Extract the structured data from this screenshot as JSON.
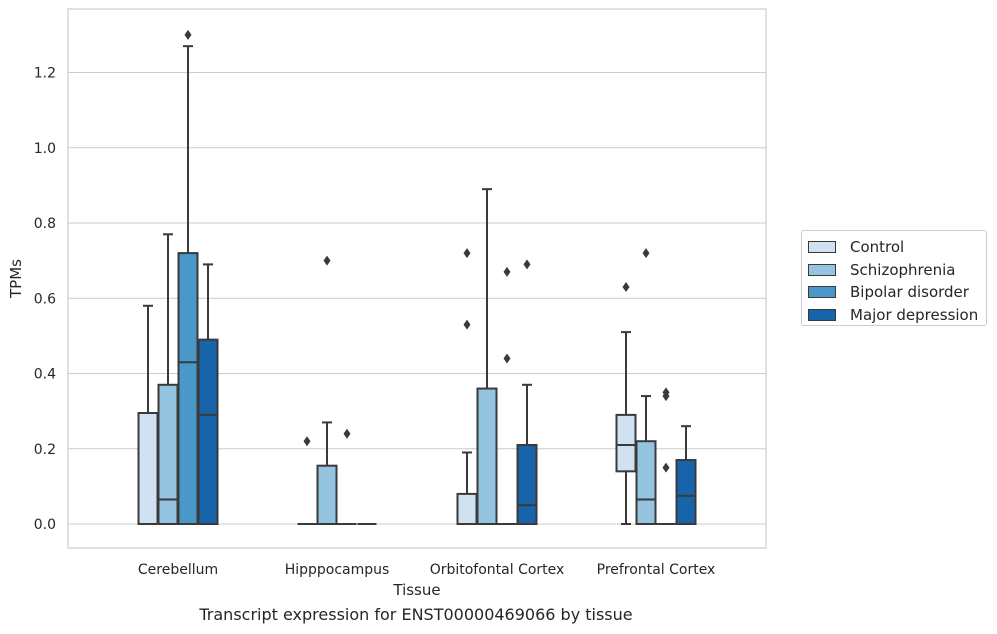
{
  "caption": "Transcript expression for ENST00000469066 by tissue",
  "chart_data": {
    "type": "box",
    "xlabel": "Tissue",
    "ylabel": "TPMs",
    "categories": [
      "Cerebellum",
      "Hipppocampus",
      "Orbitofontal Cortex",
      "Prefrontal Cortex"
    ],
    "yticks": [
      "0.0",
      "0.2",
      "0.4",
      "0.6",
      "0.8",
      "1.0",
      "1.2"
    ],
    "ylim": [
      -0.065,
      1.37
    ],
    "grid": true,
    "legend_position": "right",
    "colors": {
      "Control": "#d0e1f2",
      "Schizophrenia": "#94c4df",
      "Bipolar disorder": "#4a98c9",
      "Major depression": "#1764ab",
      "edge": "#3a3a3a",
      "grid": "#cccccc"
    },
    "series": [
      {
        "name": "Control",
        "boxes": [
          {
            "q1": 0,
            "median": 0,
            "q3": 0.295,
            "whisker_low": 0,
            "whisker_high": 0.58,
            "outliers": []
          },
          {
            "q1": 0,
            "median": 0,
            "q3": 0,
            "whisker_low": 0,
            "whisker_high": 0,
            "outliers": [
              0.22
            ]
          },
          {
            "q1": 0,
            "median": 0,
            "q3": 0.08,
            "whisker_low": 0,
            "whisker_high": 0.19,
            "outliers": [
              0.53,
              0.72
            ]
          },
          {
            "q1": 0.14,
            "median": 0.21,
            "q3": 0.29,
            "whisker_low": 0,
            "whisker_high": 0.51,
            "outliers": [
              0.63
            ]
          }
        ]
      },
      {
        "name": "Schizophrenia",
        "boxes": [
          {
            "q1": 0,
            "median": 0.065,
            "q3": 0.37,
            "whisker_low": 0,
            "whisker_high": 0.77,
            "outliers": []
          },
          {
            "q1": 0,
            "median": 0,
            "q3": 0.155,
            "whisker_low": 0,
            "whisker_high": 0.27,
            "outliers": [
              0.7
            ]
          },
          {
            "q1": 0,
            "median": 0,
            "q3": 0.36,
            "whisker_low": 0,
            "whisker_high": 0.89,
            "outliers": []
          },
          {
            "q1": 0,
            "median": 0.065,
            "q3": 0.22,
            "whisker_low": 0,
            "whisker_high": 0.34,
            "outliers": [
              0.72
            ]
          }
        ]
      },
      {
        "name": "Bipolar disorder",
        "boxes": [
          {
            "q1": 0,
            "median": 0.43,
            "q3": 0.72,
            "whisker_low": 0,
            "whisker_high": 1.27,
            "outliers": [
              1.3
            ]
          },
          {
            "q1": 0,
            "median": 0,
            "q3": 0,
            "whisker_low": 0,
            "whisker_high": 0,
            "outliers": [
              0.24
            ]
          },
          {
            "q1": 0,
            "median": 0,
            "q3": 0,
            "whisker_low": 0,
            "whisker_high": 0,
            "outliers": [
              0.44,
              0.67
            ]
          },
          {
            "q1": 0,
            "median": 0,
            "q3": 0,
            "whisker_low": 0,
            "whisker_high": 0,
            "outliers": [
              0.15,
              0.34,
              0.35
            ]
          }
        ]
      },
      {
        "name": "Major depression",
        "boxes": [
          {
            "q1": 0,
            "median": 0.29,
            "q3": 0.49,
            "whisker_low": 0,
            "whisker_high": 0.69,
            "outliers": []
          },
          {
            "q1": 0,
            "median": 0,
            "q3": 0,
            "whisker_low": 0,
            "whisker_high": 0,
            "outliers": []
          },
          {
            "q1": 0,
            "median": 0.05,
            "q3": 0.21,
            "whisker_low": 0,
            "whisker_high": 0.37,
            "outliers": [
              0.69
            ]
          },
          {
            "q1": 0,
            "median": 0.075,
            "q3": 0.17,
            "whisker_low": 0,
            "whisker_high": 0.26,
            "outliers": []
          }
        ]
      }
    ]
  }
}
